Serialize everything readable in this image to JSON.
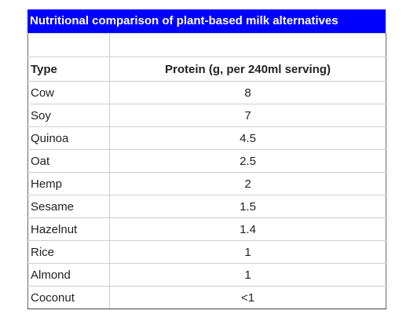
{
  "title": "Nutritional comparison of plant-based milk alternatives",
  "chart_data": {
    "type": "table",
    "title": "Nutritional comparison of plant-based milk alternatives",
    "columns": [
      "Type",
      "Protein (g, per 240ml serving)"
    ],
    "rows": [
      {
        "type": "Cow",
        "protein": "8"
      },
      {
        "type": "Soy",
        "protein": "7"
      },
      {
        "type": "Quinoa",
        "protein": "4.5"
      },
      {
        "type": "Oat",
        "protein": "2.5"
      },
      {
        "type": "Hemp",
        "protein": "2"
      },
      {
        "type": "Sesame",
        "protein": "1.5"
      },
      {
        "type": "Hazelnut",
        "protein": "1.4"
      },
      {
        "type": "Rice",
        "protein": "1"
      },
      {
        "type": "Almond",
        "protein": "1"
      },
      {
        "type": "Coconut",
        "protein": "<1"
      }
    ]
  },
  "colors": {
    "title_background": "#0000ff",
    "title_text": "#ffffff"
  }
}
